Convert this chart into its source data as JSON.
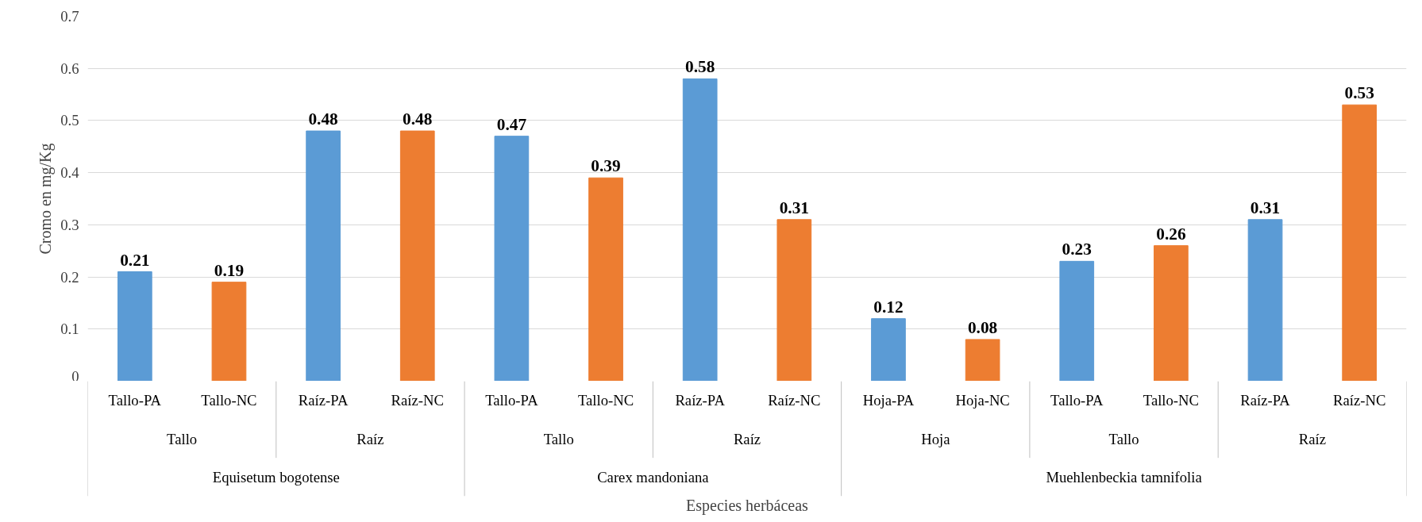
{
  "chart_data": {
    "type": "bar",
    "ylabel": "Cromo en mg/Kg",
    "categories": [
      "Tallo-PA",
      "Tallo-NC",
      "Raíz-PA",
      "Raíz-NC",
      "Tallo-PA",
      "Tallo-NC",
      "Raíz-PA",
      "Raíz-NC",
      "Hoja-PA",
      "Hoja-NC",
      "Tallo-PA",
      "Tallo-NC",
      "Raíz-PA",
      "Raíz-NC"
    ],
    "values": [
      0.21,
      0.19,
      0.48,
      0.48,
      0.47,
      0.39,
      0.58,
      0.31,
      0.12,
      0.08,
      0.23,
      0.26,
      0.31,
      0.53
    ],
    "colors": [
      "#5b9bd5",
      "#ed7d31",
      "#5b9bd5",
      "#ed7d31",
      "#5b9bd5",
      "#ed7d31",
      "#5b9bd5",
      "#ed7d31",
      "#5b9bd5",
      "#ed7d31",
      "#5b9bd5",
      "#ed7d31",
      "#5b9bd5",
      "#ed7d31"
    ],
    "ylim": [
      0,
      0.7
    ],
    "yticks": [
      0,
      0.1,
      0.2,
      0.3,
      0.4,
      0.5,
      0.6,
      0.7
    ],
    "grid": "y",
    "data_labels": true,
    "annotations": [
      "Tallo",
      "Raíz",
      "Tallo",
      "Raíz",
      "Hoja",
      "Tallo",
      "Raíz",
      "Equisetum bogotense",
      "Carex mandoniana",
      "Muehlenbeckia tamnifolia",
      "Especies herbáceas"
    ]
  }
}
